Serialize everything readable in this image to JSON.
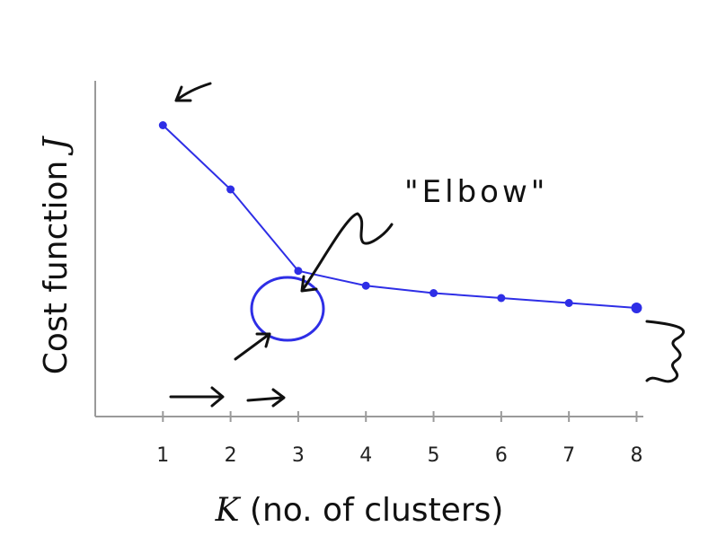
{
  "chart_data": {
    "type": "line",
    "x": [
      1,
      2,
      3,
      4,
      5,
      6,
      7,
      8
    ],
    "series": [
      {
        "values": [
          10.0,
          7.4,
          4.1,
          3.5,
          3.2,
          3.0,
          2.8,
          2.6
        ]
      }
    ],
    "xlabel_var": "K",
    "xlabel_rest": " (no. of clusters)",
    "ylabel": "Cost function",
    "ylabel_var": "J",
    "xticks": [
      "1",
      "2",
      "3",
      "4",
      "5",
      "6",
      "7",
      "8"
    ],
    "xlim": [
      0,
      8.1
    ],
    "ylim": [
      -1.8,
      11.8
    ],
    "grid": false,
    "legend": "none",
    "annotation": "\"Elbow\"",
    "line_color": "#2e2ee6",
    "ink_color": "#111111",
    "axis_color": "#9a9a9a"
  }
}
